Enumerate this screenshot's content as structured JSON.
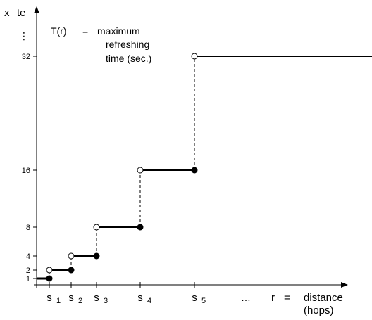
{
  "chart_data": {
    "type": "step",
    "y_axis_label_parts": [
      "x",
      "te"
    ],
    "y_ellipsis": "⋮",
    "y_ticks": [
      1,
      2,
      4,
      8,
      16,
      32
    ],
    "x_ticks": [
      {
        "base": "s",
        "sub": "1"
      },
      {
        "base": "s",
        "sub": "2"
      },
      {
        "base": "s",
        "sub": "3"
      },
      {
        "base": "s",
        "sub": "4"
      },
      {
        "base": "s",
        "sub": "5"
      }
    ],
    "x_ellipsis": "…",
    "x_axis_label": {
      "lhs": "r",
      "eq": "=",
      "rhs": "distance",
      "unit": "(hops)"
    },
    "annotation": {
      "lhs": "T(r)",
      "eq": "=",
      "lines": [
        "maximum",
        "refreshing",
        "time (sec.)"
      ]
    },
    "steps": [
      {
        "from": "origin",
        "to": "s1",
        "value": 1,
        "open_start": false,
        "closed_end": true
      },
      {
        "from": "s1",
        "to": "s2",
        "value": 2,
        "open_start": true,
        "closed_end": true
      },
      {
        "from": "s2",
        "to": "s3",
        "value": 4,
        "open_start": true,
        "closed_end": true
      },
      {
        "from": "s3",
        "to": "s4",
        "value": 8,
        "open_start": true,
        "closed_end": true
      },
      {
        "from": "s4",
        "to": "s5",
        "value": 16,
        "open_start": true,
        "closed_end": true
      },
      {
        "from": "s5",
        "to": "beyond",
        "value": 32,
        "open_start": true,
        "closed_end": false
      }
    ],
    "jump_lines": "dashed",
    "grid": false,
    "legend": "none"
  }
}
